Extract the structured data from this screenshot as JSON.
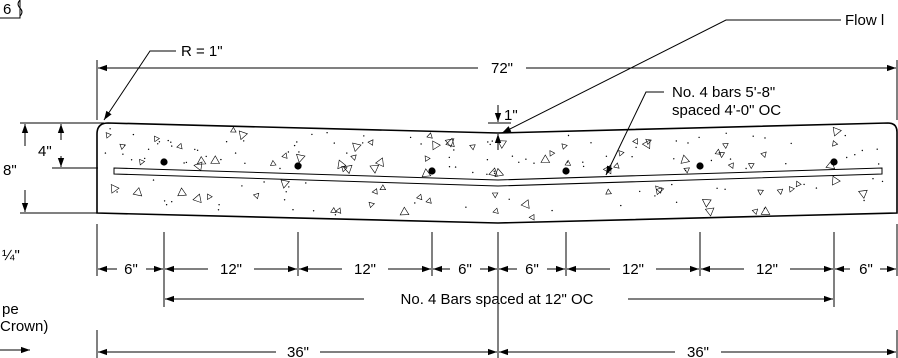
{
  "labels": {
    "top_left_fragment": "6",
    "flow_line": "Flow l",
    "radius": "R = 1\"",
    "overall_width": "72\"",
    "crown_drop": "1\"",
    "long_bars_line1": "No. 4 bars 5'-8\"",
    "long_bars_line2": "spaced 4'-0\" OC",
    "bar_depth": "4\"",
    "slab_thickness": "8\"",
    "left_fragment_fraction": "¼\"",
    "left_fragment_slope": "pe",
    "left_fragment_crown": "Crown)",
    "bar_spacing_note": "No. 4 Bars spaced at 12\" OC",
    "left_half": "36\"",
    "right_half": "36\""
  },
  "spacing_dimensions": [
    "6\"",
    "12\"",
    "12\"",
    "6\"",
    "6\"",
    "12\"",
    "12\"",
    "6\""
  ],
  "colors": {
    "line": "#000000",
    "background": "#ffffff"
  }
}
